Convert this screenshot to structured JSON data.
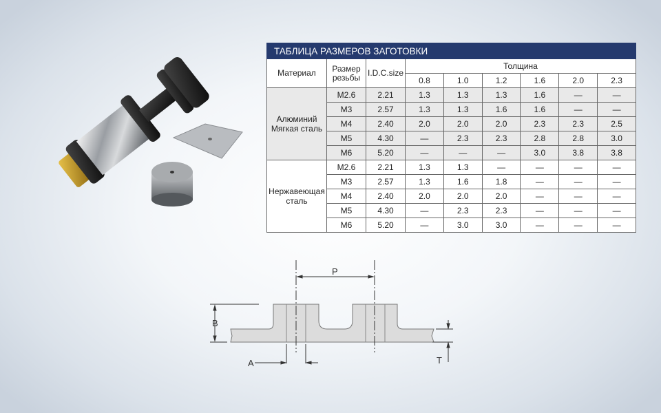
{
  "table": {
    "title": "ТАБЛИЦА РАЗМЕРОВ ЗАГОТОВКИ",
    "headers": {
      "material": "Материал",
      "thread_size_line1": "Размер",
      "thread_size_line2": "резьбы",
      "idc": "I.D.C.size",
      "thickness": "Толщина",
      "thickness_values": [
        "0.8",
        "1.0",
        "1.2",
        "1.6",
        "2.0",
        "2.3"
      ]
    },
    "groups": [
      {
        "material_line1": "Алюминий",
        "material_line2": "Мягкая сталь",
        "rows": [
          {
            "size": "M2.6",
            "idc": "2.21",
            "values": [
              "1.3",
              "1.3",
              "1.3",
              "1.6",
              "—",
              "—"
            ]
          },
          {
            "size": "M3",
            "idc": "2.57",
            "values": [
              "1.3",
              "1.3",
              "1.6",
              "1.6",
              "—",
              "—"
            ]
          },
          {
            "size": "M4",
            "idc": "2.40",
            "values": [
              "2.0",
              "2.0",
              "2.0",
              "2.3",
              "2.3",
              "2.5"
            ]
          },
          {
            "size": "M5",
            "idc": "4.30",
            "values": [
              "—",
              "2.3",
              "2.3",
              "2.8",
              "2.8",
              "3.0"
            ]
          },
          {
            "size": "M6",
            "idc": "5.20",
            "values": [
              "—",
              "—",
              "—",
              "3.0",
              "3.8",
              "3.8"
            ]
          }
        ]
      },
      {
        "material_line1": "Нержавеющая",
        "material_line2": "сталь",
        "rows": [
          {
            "size": "M2.6",
            "idc": "2.21",
            "values": [
              "1.3",
              "1.3",
              "—",
              "—",
              "—",
              "—"
            ]
          },
          {
            "size": "M3",
            "idc": "2.57",
            "values": [
              "1.3",
              "1.6",
              "1.8",
              "—",
              "—",
              "—"
            ]
          },
          {
            "size": "M4",
            "idc": "2.40",
            "values": [
              "2.0",
              "2.0",
              "2.0",
              "—",
              "—",
              "—"
            ]
          },
          {
            "size": "M5",
            "idc": "4.30",
            "values": [
              "—",
              "2.3",
              "2.3",
              "—",
              "—",
              "—"
            ]
          },
          {
            "size": "M6",
            "idc": "5.20",
            "values": [
              "—",
              "3.0",
              "3.0",
              "—",
              "—",
              "—"
            ]
          }
        ]
      }
    ]
  },
  "diagram": {
    "label_p": "P",
    "label_b": "B",
    "label_a": "A",
    "label_t": "T"
  },
  "colors": {
    "title_bar": "#253a6e",
    "shaded_rows": "#e9e9e9"
  }
}
